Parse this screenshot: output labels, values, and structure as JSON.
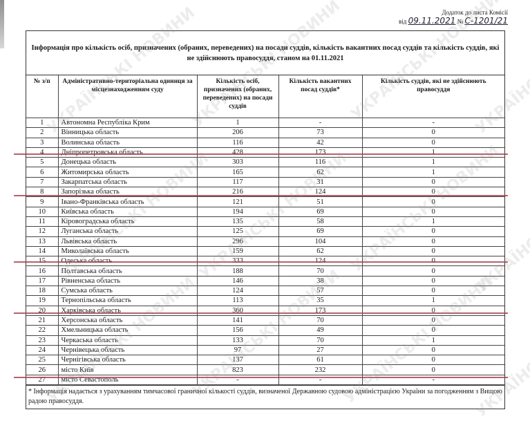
{
  "annex": {
    "line1": "Додаток до листа Комісії",
    "prefix": "від",
    "date": "09.11.2021",
    "no_label": "№",
    "number": "С-1201/21"
  },
  "title": "Інформація про кількість осіб, призначених (обраних, переведених) на посади суддів, кількість вакантних посад суддів та кількість суддів, які не здійснюють правосуддя, станом на 01.11.2021",
  "headers": [
    "№ з/п",
    "Адміністративно-територіальна одиниця за місцезнаходженням суду",
    "Кількість осіб, призначених (обраних, переведених) на посади суддів",
    "Кількість вакантних посад суддів*",
    "Кількість суддів, які не здійснюють правосуддя"
  ],
  "rows": [
    [
      "1",
      "Автономна Республіка Крим",
      "1",
      "-",
      "-"
    ],
    [
      "2",
      "Вінницька область",
      "206",
      "73",
      "0"
    ],
    [
      "3",
      "Волинська область",
      "116",
      "42",
      "0"
    ],
    [
      "4",
      "Дніпропетровська область",
      "428",
      "173",
      "1"
    ],
    [
      "5",
      "Донецька область",
      "303",
      "116",
      "1"
    ],
    [
      "6",
      "Житомирська область",
      "165",
      "62",
      "1"
    ],
    [
      "7",
      "Закарпатська область",
      "117",
      "31",
      "0"
    ],
    [
      "8",
      "Запорізька область",
      "216",
      "124",
      "0"
    ],
    [
      "9",
      "Івано-Франківська область",
      "121",
      "51",
      "0"
    ],
    [
      "10",
      "Київська область",
      "194",
      "69",
      "0"
    ],
    [
      "11",
      "Кіровоградська область",
      "135",
      "58",
      "1"
    ],
    [
      "12",
      "Луганська область",
      "125",
      "69",
      "0"
    ],
    [
      "13",
      "Львівська область",
      "296",
      "104",
      "0"
    ],
    [
      "14",
      "Миколаївська область",
      "159",
      "62",
      "0"
    ],
    [
      "15",
      "Одеська область",
      "333",
      "124",
      "0"
    ],
    [
      "16",
      "Полтавська область",
      "188",
      "70",
      "0"
    ],
    [
      "17",
      "Рівненська область",
      "146",
      "38",
      "0"
    ],
    [
      "18",
      "Сумська область",
      "124",
      "57",
      "0"
    ],
    [
      "19",
      "Тернопільська область",
      "113",
      "35",
      "1"
    ],
    [
      "20",
      "Харківська область",
      "360",
      "173",
      "0"
    ],
    [
      "21",
      "Херсонська область",
      "141",
      "70",
      "0"
    ],
    [
      "22",
      "Хмельницька область",
      "156",
      "49",
      "0"
    ],
    [
      "23",
      "Черкаська область",
      "133",
      "70",
      "1"
    ],
    [
      "24",
      "Чернівецька область",
      "97",
      "27",
      "0"
    ],
    [
      "25",
      "Чернігівська область",
      "137",
      "61",
      "0"
    ],
    [
      "26",
      "місто Київ",
      "823",
      "232",
      "0"
    ],
    [
      "27",
      "місто Севастополь",
      "-",
      "-",
      "-"
    ]
  ],
  "footnote": "* Інформація надається з урахуванням тимчасової граничної кількості суддів, визначеної Державною судовою адміністрацією України за погодженням з Вищою радою правосуддя.",
  "watermark": "УКРАЇНСЬКІ НОВИНИ",
  "colors": {
    "underline": "#a33a48"
  }
}
